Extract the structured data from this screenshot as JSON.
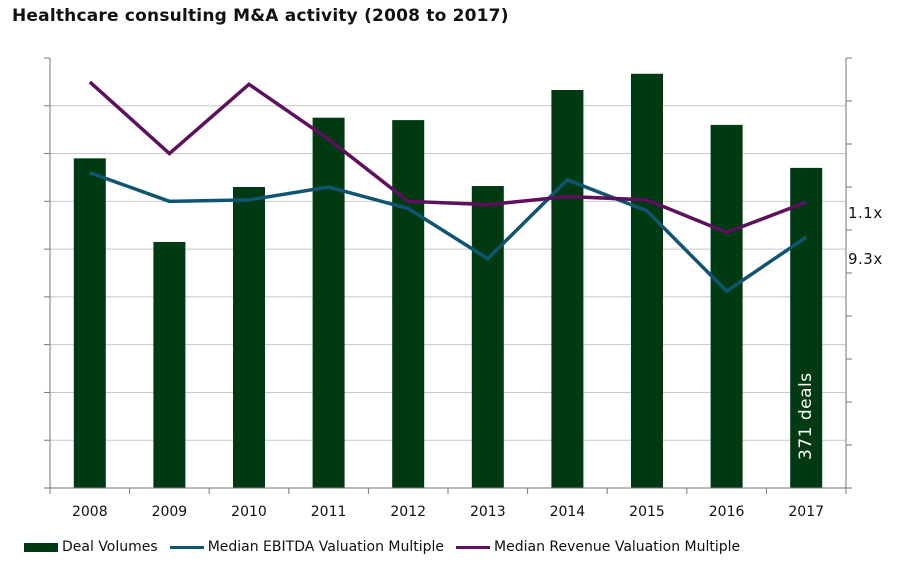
{
  "chart_data": {
    "type": "bar",
    "title": "Healthcare consulting M&A activity (2008 to 2017)",
    "categories": [
      "2008",
      "2009",
      "2010",
      "2011",
      "2012",
      "2013",
      "2014",
      "2015",
      "2016",
      "2017"
    ],
    "y_range": [
      0,
      9
    ],
    "secondary_y_range": [
      0,
      10
    ],
    "grid": true,
    "legend_position": "bottom",
    "series": [
      {
        "name": "Deal Volumes",
        "type": "bar",
        "color": "#003a12",
        "values": [
          6.9,
          5.15,
          6.3,
          7.75,
          7.7,
          6.32,
          8.33,
          8.67,
          7.6,
          6.7
        ]
      },
      {
        "name": "Median EBITDA Valuation Multiple",
        "type": "line",
        "color": "#0f5470",
        "values": [
          6.6,
          6.0,
          6.03,
          6.3,
          5.85,
          4.8,
          6.45,
          5.8,
          4.12,
          5.25
        ]
      },
      {
        "name": "Median Revenue Valuation Multiple",
        "type": "line",
        "color": "#5e0f5e",
        "values": [
          8.5,
          7.0,
          8.45,
          7.3,
          6.0,
          5.93,
          6.1,
          6.03,
          5.35,
          5.98
        ]
      }
    ],
    "annotations": {
      "revenue_end_label": "1.1x",
      "ebitda_end_label": "9.3x",
      "last_bar_label": "371 deals"
    }
  }
}
